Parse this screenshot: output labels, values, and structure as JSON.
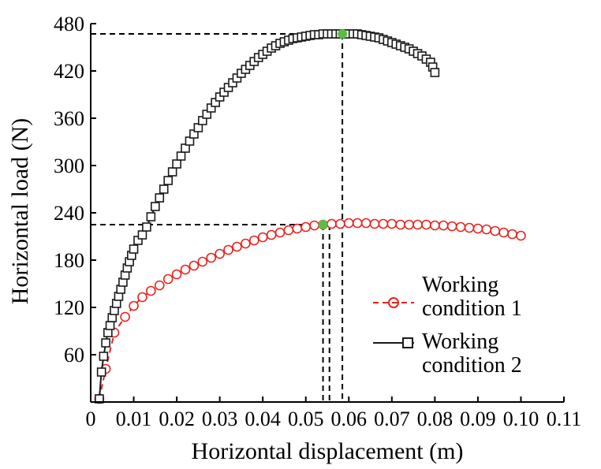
{
  "chart_data": {
    "type": "scatter",
    "xlabel": "Horizontal displacement (m)",
    "ylabel": "Horizontal load (N)",
    "xlim": [
      0,
      0.11
    ],
    "ylim": [
      0,
      480
    ],
    "x_ticks": [
      "0",
      "0.01",
      "0.02",
      "0.03",
      "0.04",
      "0.05",
      "0.06",
      "0.07",
      "0.08",
      "0.09",
      "0.10",
      "0.11"
    ],
    "y_ticks": [
      "60",
      "120",
      "180",
      "240",
      "300",
      "360",
      "420",
      "480"
    ],
    "y_tick_values": [
      60,
      120,
      180,
      240,
      300,
      360,
      420,
      480
    ],
    "grid": false,
    "legend": {
      "placement": "bottom-right",
      "entries": [
        {
          "line1": "Working",
          "line2": "condition 1"
        },
        {
          "line1": "Working",
          "line2": "condition 2"
        }
      ]
    },
    "series": [
      {
        "name": "Working condition 1",
        "color": "#e8231f",
        "marker": "circle",
        "line": "dashed",
        "x": [
          0.002,
          0.0035,
          0.0055,
          0.008,
          0.01,
          0.012,
          0.014,
          0.016,
          0.018,
          0.02,
          0.022,
          0.024,
          0.026,
          0.028,
          0.03,
          0.032,
          0.034,
          0.036,
          0.038,
          0.04,
          0.042,
          0.044,
          0.046,
          0.048,
          0.05,
          0.052,
          0.054,
          0.056,
          0.058,
          0.06,
          0.062,
          0.064,
          0.066,
          0.068,
          0.07,
          0.072,
          0.074,
          0.076,
          0.078,
          0.08,
          0.082,
          0.084,
          0.086,
          0.088,
          0.09,
          0.092,
          0.094,
          0.096,
          0.098,
          0.1
        ],
        "y": [
          4,
          42,
          88,
          108,
          122,
          133,
          141,
          148,
          156,
          162,
          168,
          173,
          178,
          183,
          188,
          193,
          197,
          201,
          205,
          209,
          212,
          215,
          218,
          220,
          222,
          224,
          225,
          226,
          226,
          227,
          227,
          227,
          226,
          226,
          226,
          225,
          225,
          225,
          225,
          224,
          224,
          223,
          222,
          221,
          220,
          219,
          217,
          215,
          213,
          211
        ]
      },
      {
        "name": "Working condition 2",
        "color": "#1a1a1a",
        "marker": "square",
        "line": "solid",
        "x": [
          0.002,
          0.0025,
          0.003,
          0.0035,
          0.004,
          0.0045,
          0.005,
          0.0055,
          0.006,
          0.0065,
          0.007,
          0.0075,
          0.008,
          0.0085,
          0.009,
          0.0095,
          0.01,
          0.011,
          0.012,
          0.013,
          0.014,
          0.015,
          0.016,
          0.017,
          0.018,
          0.019,
          0.02,
          0.021,
          0.022,
          0.023,
          0.024,
          0.025,
          0.026,
          0.027,
          0.028,
          0.029,
          0.03,
          0.031,
          0.032,
          0.033,
          0.034,
          0.035,
          0.036,
          0.037,
          0.038,
          0.039,
          0.04,
          0.041,
          0.042,
          0.043,
          0.044,
          0.045,
          0.046,
          0.047,
          0.048,
          0.049,
          0.05,
          0.051,
          0.052,
          0.053,
          0.054,
          0.055,
          0.056,
          0.057,
          0.058,
          0.059,
          0.06,
          0.061,
          0.062,
          0.063,
          0.064,
          0.065,
          0.066,
          0.067,
          0.068,
          0.069,
          0.07,
          0.071,
          0.072,
          0.073,
          0.074,
          0.075,
          0.076,
          0.077,
          0.078,
          0.079,
          0.0795,
          0.08
        ],
        "y": [
          4,
          38,
          58,
          75,
          88,
          97,
          107,
          116,
          125,
          134,
          143,
          152,
          161,
          170,
          178,
          186,
          194,
          205,
          212,
          222,
          235,
          248,
          259,
          270,
          281,
          292,
          302,
          312,
          322,
          331,
          340,
          348,
          357,
          365,
          373,
          380,
          387,
          393,
          399,
          405,
          411,
          417,
          422,
          427,
          432,
          437,
          441,
          445,
          449,
          452,
          455,
          457,
          459,
          461,
          462,
          463,
          464,
          465,
          466,
          466,
          467,
          467,
          467,
          467,
          467,
          467,
          467,
          467,
          467,
          466,
          465,
          464,
          463,
          462,
          460,
          458,
          456,
          454,
          452,
          450,
          448,
          445,
          442,
          439,
          435,
          431,
          425,
          418
        ]
      }
    ],
    "peak_markers": [
      {
        "x": 0.0585,
        "y": 467,
        "color": "#5cbd45"
      },
      {
        "x": 0.054,
        "y": 225,
        "color": "#5cbd45"
      }
    ],
    "reference_lines": [
      {
        "series": "Working condition 2",
        "x": 0.0585,
        "y": 467
      },
      {
        "series": "Working condition 1",
        "x": 0.054,
        "y": 225
      },
      {
        "series": "Working condition 1",
        "x": 0.0555,
        "y": 225
      }
    ]
  }
}
